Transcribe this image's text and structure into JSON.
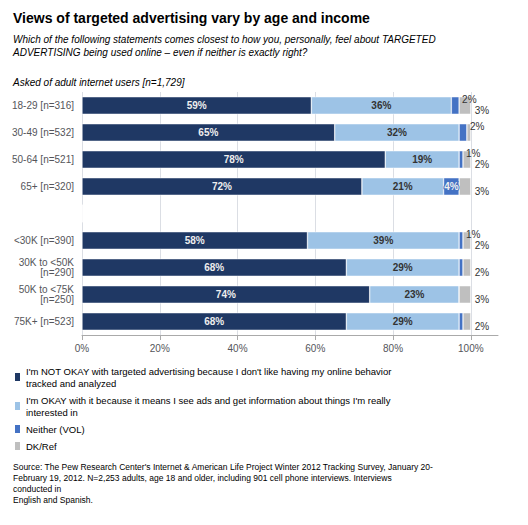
{
  "chart_data": {
    "type": "bar",
    "title": "Views of targeted advertising vary by age and income",
    "subtitle": "Which of the following statements comes closest to how you, personally, feel about TARGETED\nADVERTISING being used online – even if neither is exactly right?",
    "annotations": [
      "Asked of adult internet users [n=1,729]",
      "Source: The Pew Research Center's Internet & American Life Project Winter 2012 Tracking Survey, January 20-\nFebruary 19, 2012. N=2,253 adults, age 18 and older, including 901 cell phone interviews. Interviews conducted in\nEnglish and Spanish."
    ],
    "orientation": "horizontal",
    "stacked": true,
    "data_labels": true,
    "grid": true,
    "legend": "bottom",
    "categories": [
      "18-29 [n=316]",
      "30-49 [n=532]",
      "50-64 [n=521]",
      "65+ [n=320]",
      null,
      "<30K [n=390]",
      "30K to <50K\n[n=290]",
      "50K to <75K\n[n=250]",
      "75K+ [n=523]"
    ],
    "series": [
      {
        "name": "I'm NOT OKAY with targeted advertising because I don't like having my online behavior tracked and analyzed",
        "color": "#1F3864",
        "values": [
          59,
          65,
          78,
          72,
          0,
          58,
          68,
          74,
          68
        ],
        "value_labels": [
          "59%",
          "65%",
          "78%",
          "72%",
          null,
          "58%",
          "68%",
          "74%",
          "68%"
        ]
      },
      {
        "name": "I'm OKAY with it because it means I see ads and get information about things I'm really interested in",
        "color": "#9DC3E6",
        "values": [
          36,
          32,
          19,
          21,
          0,
          39,
          29,
          23,
          29
        ],
        "value_labels": [
          "36%",
          "32%",
          "19%",
          "21%",
          null,
          "39%",
          "29%",
          "23%",
          "29%"
        ]
      },
      {
        "name": "Neither (VOL)",
        "color": "#4472C4",
        "values": [
          2,
          2,
          1,
          4,
          0,
          1,
          1,
          0,
          1
        ],
        "value_labels": [
          "2%",
          "2%",
          "1%",
          "4%",
          null,
          "1%",
          null,
          null,
          null
        ]
      },
      {
        "name": "DK/Ref",
        "color": "#BFBFBF",
        "values": [
          3,
          1,
          2,
          3,
          0,
          2,
          2,
          3,
          2
        ],
        "value_labels": [
          "3%",
          null,
          "2%",
          "3%",
          null,
          "2%",
          "2%",
          "3%",
          "2%"
        ]
      }
    ],
    "xlim": [
      0,
      107
    ],
    "xticks": [
      {
        "value": 0,
        "label": "0%"
      },
      {
        "value": 20,
        "label": "20%"
      },
      {
        "value": 40,
        "label": "40%"
      },
      {
        "value": 60,
        "label": "60%"
      },
      {
        "value": 80,
        "label": "80%"
      },
      {
        "value": 100,
        "label": "100%"
      }
    ]
  }
}
